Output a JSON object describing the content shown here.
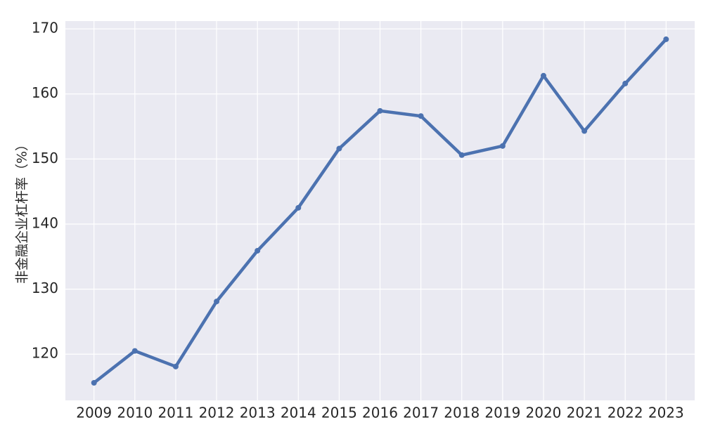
{
  "chart_data": {
    "type": "line",
    "y_label": "非金融企业杠杆率（%）",
    "x": [
      2009,
      2010,
      2011,
      2012,
      2013,
      2014,
      2015,
      2016,
      2017,
      2018,
      2019,
      2020,
      2021,
      2022,
      2023
    ],
    "series": [
      {
        "color": "#4c72b0",
        "values": [
          115.6,
          120.5,
          118.1,
          128.1,
          135.9,
          142.5,
          151.6,
          157.4,
          156.6,
          150.6,
          152.0,
          162.8,
          154.3,
          161.6,
          168.4
        ]
      }
    ],
    "xlim": [
      2008.3,
      2023.7
    ],
    "xticks": [
      2009,
      2010,
      2011,
      2012,
      2013,
      2014,
      2015,
      2016,
      2017,
      2018,
      2019,
      2020,
      2021,
      2022,
      2023
    ],
    "ylim": [
      112.9,
      171.2
    ],
    "yticks": [
      120,
      130,
      140,
      150,
      160,
      170
    ],
    "grid": true
  }
}
